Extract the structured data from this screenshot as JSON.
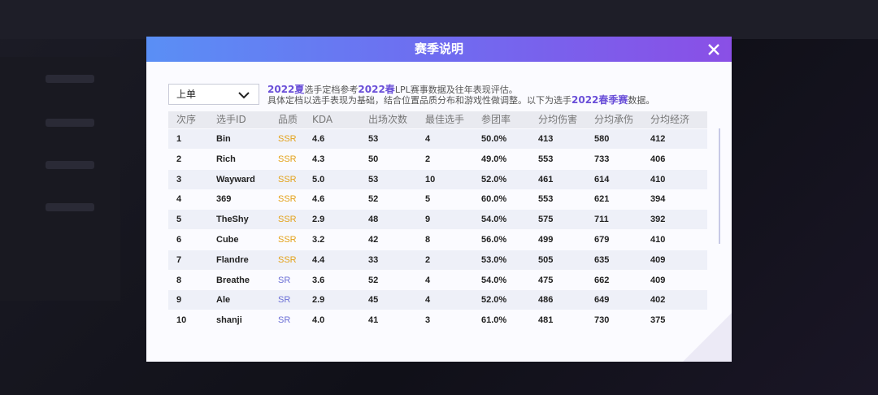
{
  "header": {
    "title": "赛季说明"
  },
  "filter": {
    "selected": "上单"
  },
  "description": {
    "lines": [
      [
        {
          "em": "2022夏"
        },
        {
          "text": "选手定档参考"
        },
        {
          "em": "2022春"
        },
        {
          "text": "LPL赛事数据及往年表现评估。"
        }
      ],
      [
        {
          "text": "具体定档以选手表现为基础，结合位置品质分布和游戏性做调整。以下为选手"
        },
        {
          "em": "2022春季赛"
        },
        {
          "text": "数据。"
        }
      ]
    ]
  },
  "quality_colors": {
    "SSR": "#e3a21a",
    "SR": "#6b6fd6"
  },
  "table": {
    "headers": [
      "次序",
      "选手ID",
      "品质",
      "KDA",
      "出场次数",
      "最佳选手",
      "参团率",
      "分均伤害",
      "分均承伤",
      "分均经济"
    ],
    "rows": [
      [
        "1",
        "Bin",
        "SSR",
        "4.6",
        "53",
        "4",
        "50.0%",
        "413",
        "580",
        "412"
      ],
      [
        "2",
        "Rich",
        "SSR",
        "4.3",
        "50",
        "2",
        "49.0%",
        "553",
        "733",
        "406"
      ],
      [
        "3",
        "Wayward",
        "SSR",
        "5.0",
        "53",
        "10",
        "52.0%",
        "461",
        "614",
        "410"
      ],
      [
        "4",
        "369",
        "SSR",
        "4.6",
        "52",
        "5",
        "60.0%",
        "553",
        "621",
        "394"
      ],
      [
        "5",
        "TheShy",
        "SSR",
        "2.9",
        "48",
        "9",
        "54.0%",
        "575",
        "711",
        "392"
      ],
      [
        "6",
        "Cube",
        "SSR",
        "3.2",
        "42",
        "8",
        "56.0%",
        "499",
        "679",
        "410"
      ],
      [
        "7",
        "Flandre",
        "SSR",
        "4.4",
        "33",
        "2",
        "53.0%",
        "505",
        "635",
        "409"
      ],
      [
        "8",
        "Breathe",
        "SR",
        "3.6",
        "52",
        "4",
        "54.0%",
        "475",
        "662",
        "409"
      ],
      [
        "9",
        "Ale",
        "SR",
        "2.9",
        "45",
        "4",
        "52.0%",
        "486",
        "649",
        "402"
      ],
      [
        "10",
        "shanji",
        "SR",
        "4.0",
        "41",
        "3",
        "61.0%",
        "481",
        "730",
        "375"
      ]
    ]
  }
}
